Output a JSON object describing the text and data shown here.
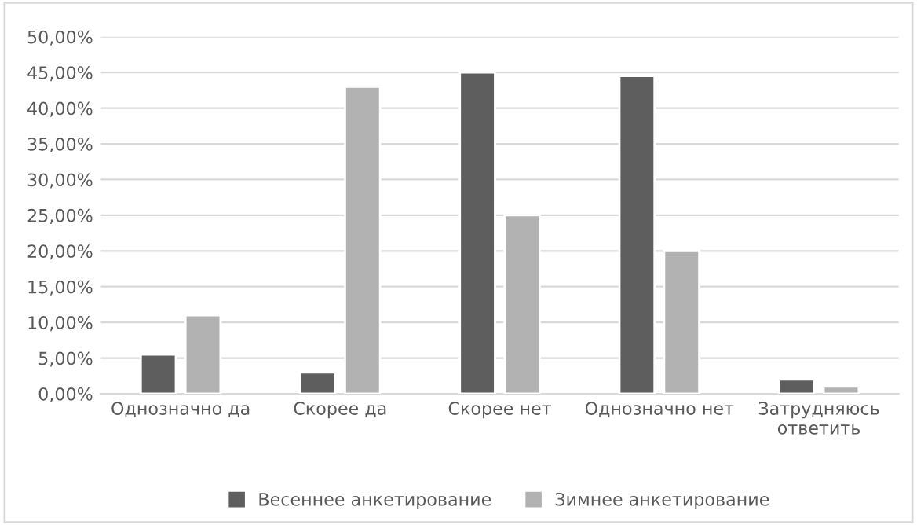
{
  "chart_data": {
    "type": "bar",
    "categories": [
      "Однозначно да",
      "Скорее да",
      "Скорее нет",
      "Однозначно нет",
      "Затрудняюсь ответить"
    ],
    "series": [
      {
        "name": "Весеннее анкетирование",
        "color": "#5e5e5e",
        "values": [
          5.5,
          3,
          45,
          44.5,
          2
        ]
      },
      {
        "name": "Зимнее анкетирование",
        "color": "#b2b2b2",
        "values": [
          11,
          43,
          25,
          20,
          1
        ]
      }
    ],
    "ylim": [
      0,
      50
    ],
    "yticks": [
      {
        "value": 0,
        "label": "0,00%"
      },
      {
        "value": 5,
        "label": "5,00%"
      },
      {
        "value": 10,
        "label": "10,00%"
      },
      {
        "value": 15,
        "label": "15,00%"
      },
      {
        "value": 20,
        "label": "20,00%"
      },
      {
        "value": 25,
        "label": "25,00%"
      },
      {
        "value": 30,
        "label": "30,00%"
      },
      {
        "value": 35,
        "label": "35,00%"
      },
      {
        "value": 40,
        "label": "40,00%"
      },
      {
        "value": 45,
        "label": "45,00%"
      },
      {
        "value": 50,
        "label": "50,00%"
      }
    ],
    "grid": "y",
    "legend": "bottom"
  }
}
